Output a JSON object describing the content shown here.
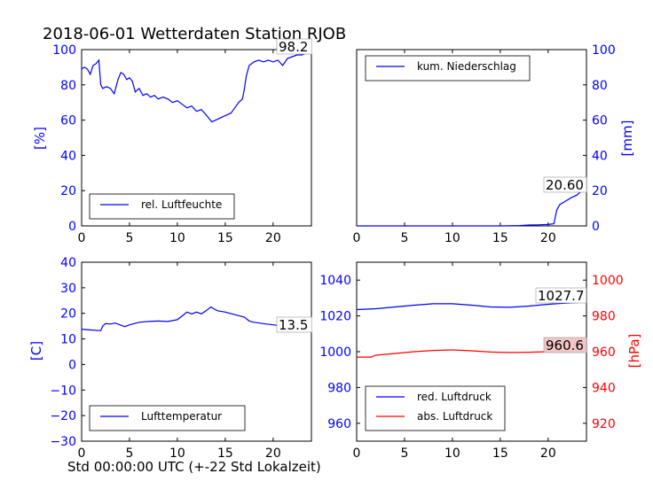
{
  "title": "2018-06-01 Wetterdaten Station RJOB",
  "x_axis_label": "Std 00:00:00 UTC (+-22 Std Lokalzeit)",
  "colors": {
    "primary": "#0000ff",
    "secondary": "#ff0000",
    "frame": "#000000"
  },
  "chart_data": [
    {
      "type": "line",
      "panel": "top-left",
      "ylabel": "[%]",
      "xlim": [
        0,
        24
      ],
      "ylim": [
        0,
        100
      ],
      "xticks": [
        "0",
        "5",
        "10",
        "15",
        "20"
      ],
      "yticks": [
        "0",
        "20",
        "40",
        "60",
        "80",
        "100"
      ],
      "legend": "lower-left",
      "series": [
        {
          "name": "rel. Luftfeuchte",
          "color": "#0000ff",
          "x": [
            0,
            0.3,
            0.6,
            0.9,
            1.2,
            1.5,
            1.8,
            2.0,
            2.2,
            2.6,
            3.0,
            3.4,
            3.8,
            4.1,
            4.4,
            4.7,
            5.0,
            5.3,
            5.6,
            6.0,
            6.4,
            6.8,
            7.2,
            7.6,
            8.0,
            8.5,
            9.0,
            9.5,
            10.0,
            10.5,
            11.0,
            11.5,
            12.0,
            12.5,
            13.0,
            13.3,
            13.6,
            14.0,
            14.4,
            14.8,
            15.2,
            15.6,
            16.0,
            16.4,
            16.8,
            17.0,
            17.2,
            17.5,
            18.0,
            18.5,
            19.0,
            19.5,
            20.0,
            20.5,
            21.0,
            21.5,
            22.0,
            22.5,
            23.0,
            23.5,
            24.0
          ],
          "y": [
            89,
            90,
            89,
            86,
            91,
            92,
            94,
            80,
            78,
            79,
            78,
            75,
            83,
            87,
            86,
            83,
            84,
            82,
            76,
            78,
            74,
            75,
            73,
            74,
            72,
            73,
            72,
            70,
            71,
            69,
            67,
            68,
            65,
            66,
            63,
            61,
            59,
            60,
            61,
            62,
            63,
            64,
            67,
            70,
            72,
            78,
            85,
            91,
            93,
            94,
            93,
            94,
            93,
            94,
            91,
            95,
            96,
            97,
            97,
            98,
            98.2
          ]
        }
      ],
      "annotation": "98.2"
    },
    {
      "type": "line",
      "panel": "top-right",
      "ylabel": "[mm]",
      "xlim": [
        0,
        24
      ],
      "ylim": [
        0,
        100
      ],
      "xticks": [
        "0",
        "5",
        "10",
        "15",
        "20"
      ],
      "yticks": [
        "0",
        "20",
        "40",
        "60",
        "80",
        "100"
      ],
      "legend": "upper-left",
      "series": [
        {
          "name": "kum. Niederschlag",
          "color": "#0000ff",
          "x": [
            0,
            5,
            10,
            15,
            17.0,
            18.0,
            19.0,
            20.0,
            20.6,
            20.9,
            21.2,
            21.8,
            22.4,
            23.0,
            23.5,
            24.0
          ],
          "y": [
            0,
            0,
            0,
            0,
            0.2,
            0.5,
            0.6,
            0.8,
            1.2,
            9.0,
            12.0,
            14.0,
            16.0,
            17.5,
            19.8,
            20.6
          ]
        }
      ],
      "annotation": "20.60"
    },
    {
      "type": "line",
      "panel": "bottom-left",
      "ylabel": "[C]",
      "xlim": [
        0,
        24
      ],
      "ylim": [
        -30,
        40
      ],
      "xticks": [
        "0",
        "5",
        "10",
        "15",
        "20"
      ],
      "yticks": [
        "−30",
        "−20",
        "−10",
        "0",
        "10",
        "20",
        "30",
        "40"
      ],
      "legend": "lower-left",
      "series": [
        {
          "name": "Lufttemperatur",
          "color": "#0000ff",
          "x": [
            0,
            1.0,
            2.0,
            2.2,
            2.5,
            3.0,
            3.5,
            4.0,
            4.5,
            5.0,
            6.0,
            7.0,
            8.0,
            9.0,
            10.0,
            10.5,
            11.0,
            11.5,
            12.0,
            12.5,
            13.0,
            13.5,
            13.8,
            14.2,
            15.0,
            16.0,
            17.0,
            17.5,
            18.0,
            19.0,
            20.0,
            21.0,
            22.0,
            23.0,
            24.0
          ],
          "y": [
            13.8,
            13.5,
            13.2,
            15.0,
            16.0,
            15.8,
            16.2,
            15.5,
            14.8,
            15.5,
            16.5,
            16.8,
            17.0,
            16.8,
            17.5,
            19.0,
            20.5,
            19.8,
            20.5,
            19.8,
            21.0,
            22.5,
            21.8,
            21.0,
            20.5,
            19.5,
            18.5,
            17.0,
            16.5,
            16.0,
            15.5,
            15.0,
            14.5,
            14.0,
            13.5
          ]
        }
      ],
      "annotation": "13.5"
    },
    {
      "type": "line",
      "panel": "bottom-right",
      "ylabel_left": "",
      "ylabel_right": "[hPa]",
      "xlim": [
        0,
        24
      ],
      "ylim_left": [
        950,
        1050
      ],
      "ylim_right": [
        910,
        1010
      ],
      "xticks": [
        "0",
        "5",
        "10",
        "15",
        "20"
      ],
      "yticks_left": [
        "960",
        "980",
        "1000",
        "1020",
        "1040"
      ],
      "yticks_right": [
        "920",
        "940",
        "960",
        "980",
        "1000"
      ],
      "legend": "lower-left",
      "series": [
        {
          "name": "red. Luftdruck",
          "color": "#0000ff",
          "axis": "left",
          "x": [
            0,
            2,
            4,
            6,
            8,
            10,
            12,
            14,
            16,
            18,
            20,
            22,
            24
          ],
          "y": [
            1023.5,
            1024,
            1025,
            1026,
            1026.8,
            1026.8,
            1026,
            1025,
            1024.8,
            1025.5,
            1026.5,
            1027.2,
            1027.7
          ]
        },
        {
          "name": "abs. Luftdruck",
          "color": "#ff0000",
          "axis": "right",
          "x": [
            0,
            1.5,
            2.0,
            4,
            6,
            8,
            10,
            12,
            14,
            16,
            18,
            20,
            22,
            24
          ],
          "y": [
            957,
            957,
            958,
            959,
            960,
            960.7,
            961,
            960.5,
            959.8,
            959.5,
            959.7,
            960,
            960.3,
            960.6
          ]
        }
      ],
      "annotations": [
        "1027.7",
        "960.6"
      ]
    }
  ]
}
